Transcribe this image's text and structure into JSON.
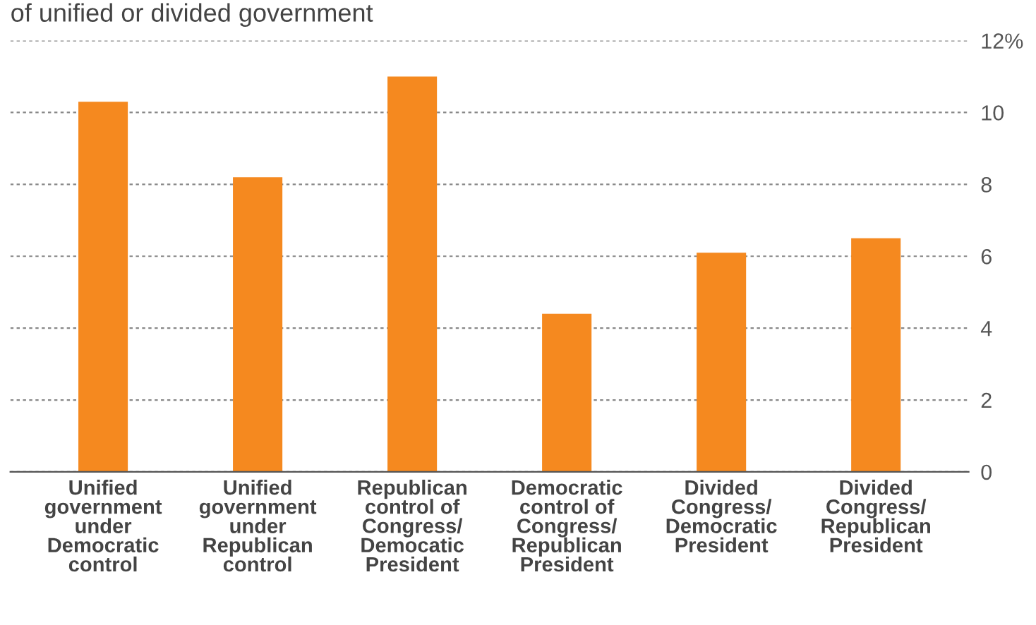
{
  "chart_data": {
    "type": "bar",
    "subtitle": "of unified or divided government",
    "categories": [
      "Unified\ngovernment\nunder\nDemocratic\ncontrol",
      "Unified\ngovernment\nunder\nRepublican\ncontrol",
      "Republican\ncontrol of\nCongress/\nDemocatic\nPresident",
      "Democratic\ncontrol of\nCongress/\nRepublican\nPresident",
      "Divided\nCongress/\nDemocratic\nPresident",
      "Divided\nCongress/\nRepublican\nPresident"
    ],
    "values": [
      10.3,
      8.2,
      11.0,
      4.4,
      6.1,
      6.5
    ],
    "color": "#f5891f",
    "ylim": [
      0,
      12
    ],
    "yticks": [
      0,
      2,
      4,
      6,
      8,
      10,
      {
        "value": 12,
        "label": "12%"
      }
    ],
    "grid": "y"
  }
}
